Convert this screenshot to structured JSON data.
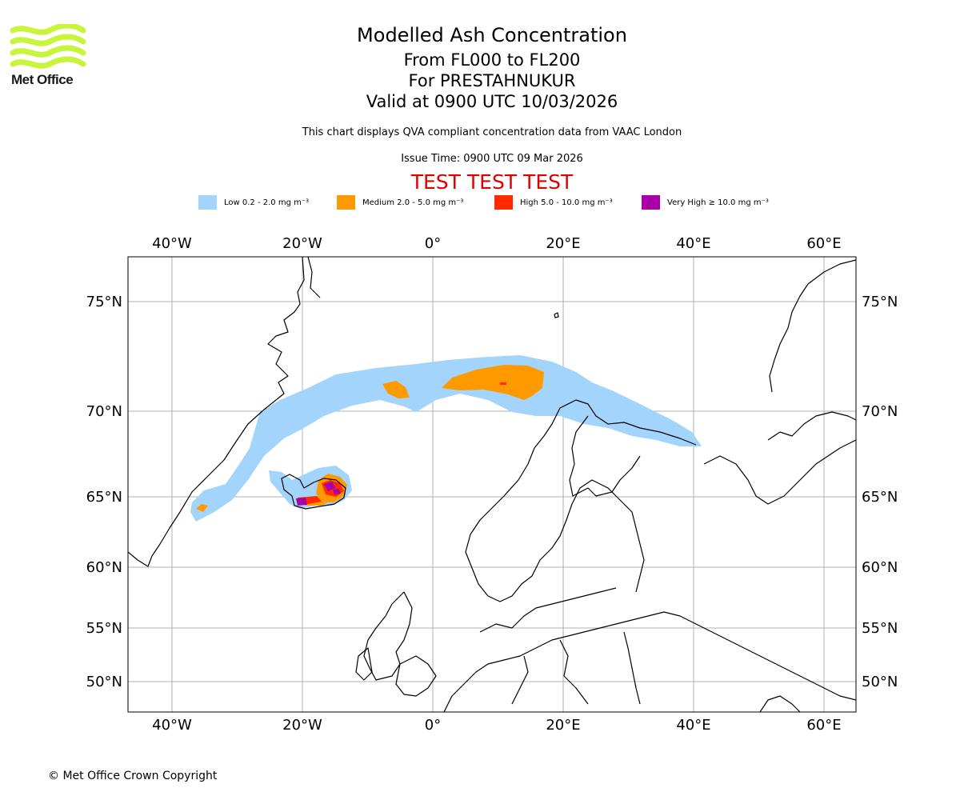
{
  "header": {
    "logo_text": "Met Office",
    "title": "Modelled Ash Concentration",
    "levels": "From FL000 to FL200",
    "volcano": "For PRESTAHNUKUR",
    "valid": "Valid at 0900 UTC 10/03/2026",
    "note": "This chart displays QVA compliant concentration data from VAAC London",
    "issue": "Issue Time: 0900 UTC 09 Mar 2026",
    "test_banner": "TEST TEST TEST"
  },
  "legend": [
    {
      "label": "Low 0.2 - 2.0 mg m⁻³",
      "color": "#a3d4fb"
    },
    {
      "label": "Medium 2.0 - 5.0 mg m⁻³",
      "color": "#ff9900"
    },
    {
      "label": "High 5.0 - 10.0 mg m⁻³",
      "color": "#ff2a00"
    },
    {
      "label": "Very High ≥ 10.0 mg m⁻³",
      "color": "#aa00aa"
    }
  ],
  "map": {
    "lon_ticks": [
      "40°W",
      "20°W",
      "0°",
      "20°E",
      "40°E",
      "60°E"
    ],
    "lat_ticks": [
      "75°N",
      "70°N",
      "65°N",
      "60°N",
      "55°N",
      "50°N"
    ],
    "coast_color": "#000000",
    "grid_color": "#b0b0b0"
  },
  "footer": {
    "copyright": "© Met Office Crown Copyright"
  }
}
